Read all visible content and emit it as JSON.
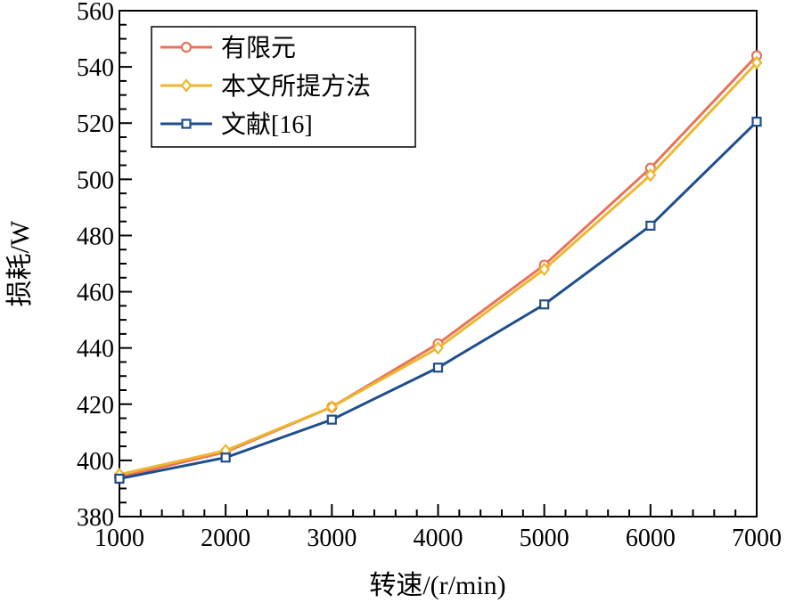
{
  "chart_data": {
    "type": "line",
    "title": "",
    "xlabel": "转速/(r/min)",
    "ylabel": "损耗/W",
    "xlim": [
      1000,
      7000
    ],
    "ylim": [
      380,
      560
    ],
    "xticks": [
      1000,
      2000,
      3000,
      4000,
      5000,
      6000,
      7000
    ],
    "yticks": [
      380,
      400,
      420,
      440,
      460,
      480,
      500,
      520,
      540,
      560
    ],
    "grid": false,
    "legend_position": "top-left",
    "x": [
      1000,
      2000,
      3000,
      4000,
      5000,
      6000,
      7000
    ],
    "series": [
      {
        "name": "有限元",
        "marker": "circle",
        "color": "#E8735A",
        "values": [
          394,
          403,
          419,
          441.5,
          469.5,
          504,
          544
        ]
      },
      {
        "name": "本文所提方法",
        "marker": "diamond",
        "color": "#EDB62F",
        "values": [
          395,
          403.5,
          419,
          440,
          468,
          501.5,
          541.5
        ]
      },
      {
        "name": "文献[16]",
        "marker": "square",
        "color": "#1F4E8C",
        "values": [
          393.5,
          401,
          414.5,
          433,
          455.5,
          483.5,
          520.5
        ]
      }
    ]
  }
}
